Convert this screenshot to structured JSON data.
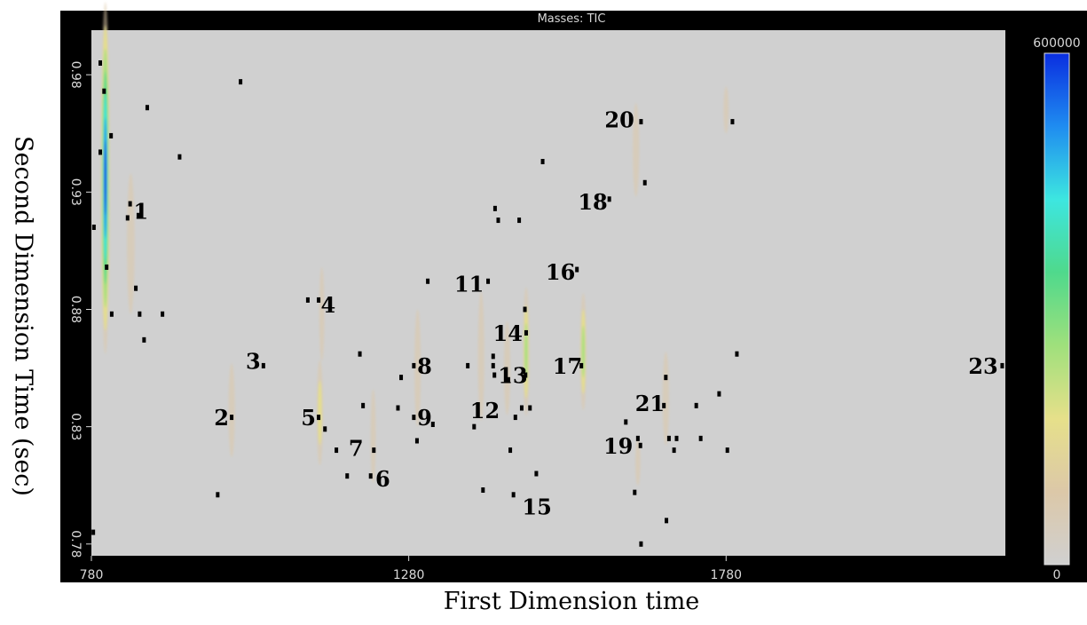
{
  "chart_data": {
    "type": "heatmap",
    "title": "Masses: TIC",
    "xlabel": "First Dimension time",
    "ylabel": "Second Dimension Time (sec)",
    "xlim": [
      780,
      2220
    ],
    "ylim": [
      0.775,
      0.999
    ],
    "x_ticks": [
      780,
      1280,
      1780
    ],
    "y_ticks": [
      0.78,
      0.83,
      0.88,
      0.93,
      0.98
    ],
    "colorbar": {
      "min_label": "0",
      "max_label": "600000",
      "min": 0,
      "max": 600000
    },
    "colors": {
      "background": "#d0d0d0",
      "frame": "#000000",
      "scale": [
        "#d0d0d0",
        "#dcc8a8",
        "#e6e08a",
        "#9fe07c",
        "#4fd98c",
        "#3de6e0",
        "#1f8cf0",
        "#0a2ee0"
      ]
    },
    "peaks": [
      {
        "x": 802,
        "y": 0.936,
        "width": 14,
        "height": 0.15,
        "intensity": 600000
      },
      {
        "x": 842,
        "y": 0.908,
        "width": 12,
        "height": 0.06,
        "intensity": 60000
      },
      {
        "x": 1001,
        "y": 0.837,
        "width": 10,
        "height": 0.04,
        "intensity": 40000
      },
      {
        "x": 1140,
        "y": 0.836,
        "width": 10,
        "height": 0.045,
        "intensity": 170000
      },
      {
        "x": 1143,
        "y": 0.878,
        "width": 8,
        "height": 0.04,
        "intensity": 35000
      },
      {
        "x": 1224,
        "y": 0.826,
        "width": 8,
        "height": 0.04,
        "intensity": 40000
      },
      {
        "x": 1294,
        "y": 0.855,
        "width": 10,
        "height": 0.05,
        "intensity": 90000
      },
      {
        "x": 1394,
        "y": 0.86,
        "width": 10,
        "height": 0.055,
        "intensity": 90000
      },
      {
        "x": 1435,
        "y": 0.855,
        "width": 10,
        "height": 0.04,
        "intensity": 80000
      },
      {
        "x": 1465,
        "y": 0.862,
        "width": 10,
        "height": 0.055,
        "intensity": 260000
      },
      {
        "x": 1555,
        "y": 0.862,
        "width": 10,
        "height": 0.05,
        "intensity": 290000
      },
      {
        "x": 1638,
        "y": 0.948,
        "width": 10,
        "height": 0.04,
        "intensity": 60000
      },
      {
        "x": 1685,
        "y": 0.842,
        "width": 10,
        "height": 0.04,
        "intensity": 80000
      },
      {
        "x": 1641,
        "y": 0.815,
        "width": 8,
        "height": 0.02,
        "intensity": 25000
      },
      {
        "x": 1780,
        "y": 0.965,
        "width": 8,
        "height": 0.02,
        "intensity": 20000
      }
    ],
    "markers": [
      {
        "x": 783,
        "y": 0.785
      },
      {
        "x": 784,
        "y": 0.915
      },
      {
        "x": 794,
        "y": 0.985
      },
      {
        "x": 794,
        "y": 0.947
      },
      {
        "x": 800,
        "y": 0.973
      },
      {
        "x": 811,
        "y": 0.954
      },
      {
        "x": 804,
        "y": 0.898
      },
      {
        "x": 812,
        "y": 0.878
      },
      {
        "x": 837,
        "y": 0.919
      },
      {
        "x": 841,
        "y": 0.925
      },
      {
        "x": 854,
        "y": 0.92
      },
      {
        "x": 850,
        "y": 0.889
      },
      {
        "x": 856,
        "y": 0.878
      },
      {
        "x": 863,
        "y": 0.867
      },
      {
        "x": 868,
        "y": 0.966
      },
      {
        "x": 892,
        "y": 0.878
      },
      {
        "x": 919,
        "y": 0.945
      },
      {
        "x": 979,
        "y": 0.801
      },
      {
        "x": 1001,
        "y": 0.834
      },
      {
        "x": 1015,
        "y": 0.977
      },
      {
        "x": 1051,
        "y": 0.856
      },
      {
        "x": 1121,
        "y": 0.884
      },
      {
        "x": 1138,
        "y": 0.884
      },
      {
        "x": 1138,
        "y": 0.834
      },
      {
        "x": 1148,
        "y": 0.829
      },
      {
        "x": 1166,
        "y": 0.82
      },
      {
        "x": 1183,
        "y": 0.809
      },
      {
        "x": 1203,
        "y": 0.861
      },
      {
        "x": 1208,
        "y": 0.839
      },
      {
        "x": 1220,
        "y": 0.809
      },
      {
        "x": 1225,
        "y": 0.82
      },
      {
        "x": 1263,
        "y": 0.838
      },
      {
        "x": 1268,
        "y": 0.851
      },
      {
        "x": 1288,
        "y": 0.856
      },
      {
        "x": 1288,
        "y": 0.834
      },
      {
        "x": 1293,
        "y": 0.824
      },
      {
        "x": 1310,
        "y": 0.892
      },
      {
        "x": 1318,
        "y": 0.831
      },
      {
        "x": 1373,
        "y": 0.856
      },
      {
        "x": 1383,
        "y": 0.83
      },
      {
        "x": 1397,
        "y": 0.803
      },
      {
        "x": 1405,
        "y": 0.892
      },
      {
        "x": 1413,
        "y": 0.856
      },
      {
        "x": 1413,
        "y": 0.86
      },
      {
        "x": 1415,
        "y": 0.852
      },
      {
        "x": 1416,
        "y": 0.923
      },
      {
        "x": 1421,
        "y": 0.918
      },
      {
        "x": 1437,
        "y": 0.85
      },
      {
        "x": 1440,
        "y": 0.82
      },
      {
        "x": 1445,
        "y": 0.801
      },
      {
        "x": 1448,
        "y": 0.834
      },
      {
        "x": 1454,
        "y": 0.918
      },
      {
        "x": 1458,
        "y": 0.838
      },
      {
        "x": 1463,
        "y": 0.88
      },
      {
        "x": 1465,
        "y": 0.87
      },
      {
        "x": 1464,
        "y": 0.852
      },
      {
        "x": 1471,
        "y": 0.838
      },
      {
        "x": 1481,
        "y": 0.81
      },
      {
        "x": 1491,
        "y": 0.943
      },
      {
        "x": 1545,
        "y": 0.897
      },
      {
        "x": 1552,
        "y": 0.856
      },
      {
        "x": 1596,
        "y": 0.927
      },
      {
        "x": 1622,
        "y": 0.832
      },
      {
        "x": 1636,
        "y": 0.802
      },
      {
        "x": 1641,
        "y": 0.825
      },
      {
        "x": 1645,
        "y": 0.822
      },
      {
        "x": 1646,
        "y": 0.96
      },
      {
        "x": 1646,
        "y": 0.78
      },
      {
        "x": 1652,
        "y": 0.934
      },
      {
        "x": 1682,
        "y": 0.839
      },
      {
        "x": 1685,
        "y": 0.851
      },
      {
        "x": 1686,
        "y": 0.79
      },
      {
        "x": 1690,
        "y": 0.825
      },
      {
        "x": 1698,
        "y": 0.82
      },
      {
        "x": 1702,
        "y": 0.825
      },
      {
        "x": 1733,
        "y": 0.839
      },
      {
        "x": 1740,
        "y": 0.825
      },
      {
        "x": 1769,
        "y": 0.844
      },
      {
        "x": 1782,
        "y": 0.82
      },
      {
        "x": 1790,
        "y": 0.96
      },
      {
        "x": 1797,
        "y": 0.861
      },
      {
        "x": 2215,
        "y": 0.856
      }
    ],
    "annotations": [
      {
        "text": "1",
        "x": 858,
        "y": 0.922
      },
      {
        "text": "2",
        "x": 985,
        "y": 0.834
      },
      {
        "text": "3",
        "x": 1035,
        "y": 0.858
      },
      {
        "text": "4",
        "x": 1153,
        "y": 0.882
      },
      {
        "text": "5",
        "x": 1122,
        "y": 0.834
      },
      {
        "text": "6",
        "x": 1239,
        "y": 0.808
      },
      {
        "text": "7",
        "x": 1197,
        "y": 0.821
      },
      {
        "text": "8",
        "x": 1305,
        "y": 0.856
      },
      {
        "text": "9",
        "x": 1305,
        "y": 0.834
      },
      {
        "text": "11",
        "x": 1375,
        "y": 0.891
      },
      {
        "text": "12",
        "x": 1400,
        "y": 0.837
      },
      {
        "text": "13",
        "x": 1444,
        "y": 0.852
      },
      {
        "text": "14",
        "x": 1436,
        "y": 0.87
      },
      {
        "text": "15",
        "x": 1482,
        "y": 0.796
      },
      {
        "text": "16",
        "x": 1519,
        "y": 0.896
      },
      {
        "text": "17",
        "x": 1530,
        "y": 0.856
      },
      {
        "text": "18",
        "x": 1570,
        "y": 0.926
      },
      {
        "text": "19",
        "x": 1610,
        "y": 0.822
      },
      {
        "text": "20",
        "x": 1612,
        "y": 0.961
      },
      {
        "text": "21",
        "x": 1660,
        "y": 0.84
      },
      {
        "text": "23",
        "x": 2185,
        "y": 0.856
      }
    ]
  }
}
